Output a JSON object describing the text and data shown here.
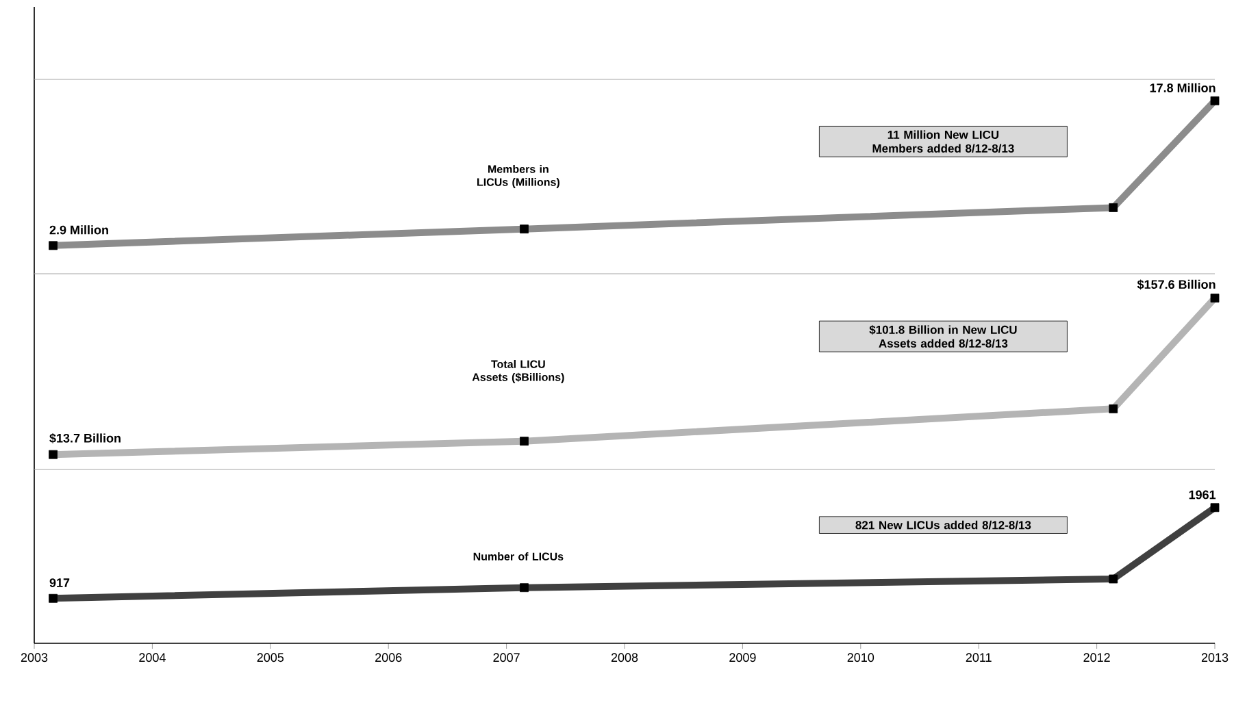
{
  "chart_data": [
    {
      "type": "line",
      "title": "Members in LICUs (Millions)",
      "x": [
        2003.16,
        2007.15,
        2012.14,
        2013
      ],
      "values": [
        2.9,
        4.6,
        6.8,
        17.8
      ],
      "value_labels": [
        "2.9 Million",
        null,
        null,
        "17.8 Million"
      ],
      "color": "#8c8c8c",
      "marker": "square",
      "xlim": [
        2003,
        2013
      ],
      "xticks": [
        2003,
        2004,
        2005,
        2006,
        2007,
        2008,
        2009,
        2010,
        2011,
        2012,
        2013
      ],
      "ylim": [
        0,
        20
      ],
      "tick_labels": false,
      "annotations": [
        "11 Million New LICU Members added 8/12-8/13"
      ]
    },
    {
      "type": "line",
      "title": "Total LICU Assets ($Billions)",
      "x": [
        2003.16,
        2007.15,
        2012.14,
        2013
      ],
      "values": [
        13.7,
        26,
        55.8,
        157.6
      ],
      "value_labels": [
        "$13.7 Billion",
        null,
        null,
        "$157.6 Billion"
      ],
      "color": "#b4b4b4",
      "marker": "square",
      "xlim": [
        2003,
        2013
      ],
      "xticks": [
        2003,
        2004,
        2005,
        2006,
        2007,
        2008,
        2009,
        2010,
        2011,
        2012,
        2013
      ],
      "ylim": [
        0,
        180
      ],
      "tick_labels": false,
      "annotations": [
        "$101.8 Billion in New LICU Assets added 8/12-8/13"
      ]
    },
    {
      "type": "line",
      "title": "Number of LICUs",
      "x": [
        2003.16,
        2007.15,
        2012.14,
        2013
      ],
      "values": [
        917,
        1040,
        1140,
        1961
      ],
      "value_labels": [
        "917",
        null,
        null,
        "1961"
      ],
      "color": "#404040",
      "marker": "square",
      "xlim": [
        2003,
        2013
      ],
      "xticks": [
        2003,
        2004,
        2005,
        2006,
        2007,
        2008,
        2009,
        2010,
        2011,
        2012,
        2013
      ],
      "ylim": [
        400,
        2400
      ],
      "tick_labels": "x",
      "annotations": [
        "821 New LICUs added 8/12-8/13"
      ]
    }
  ]
}
